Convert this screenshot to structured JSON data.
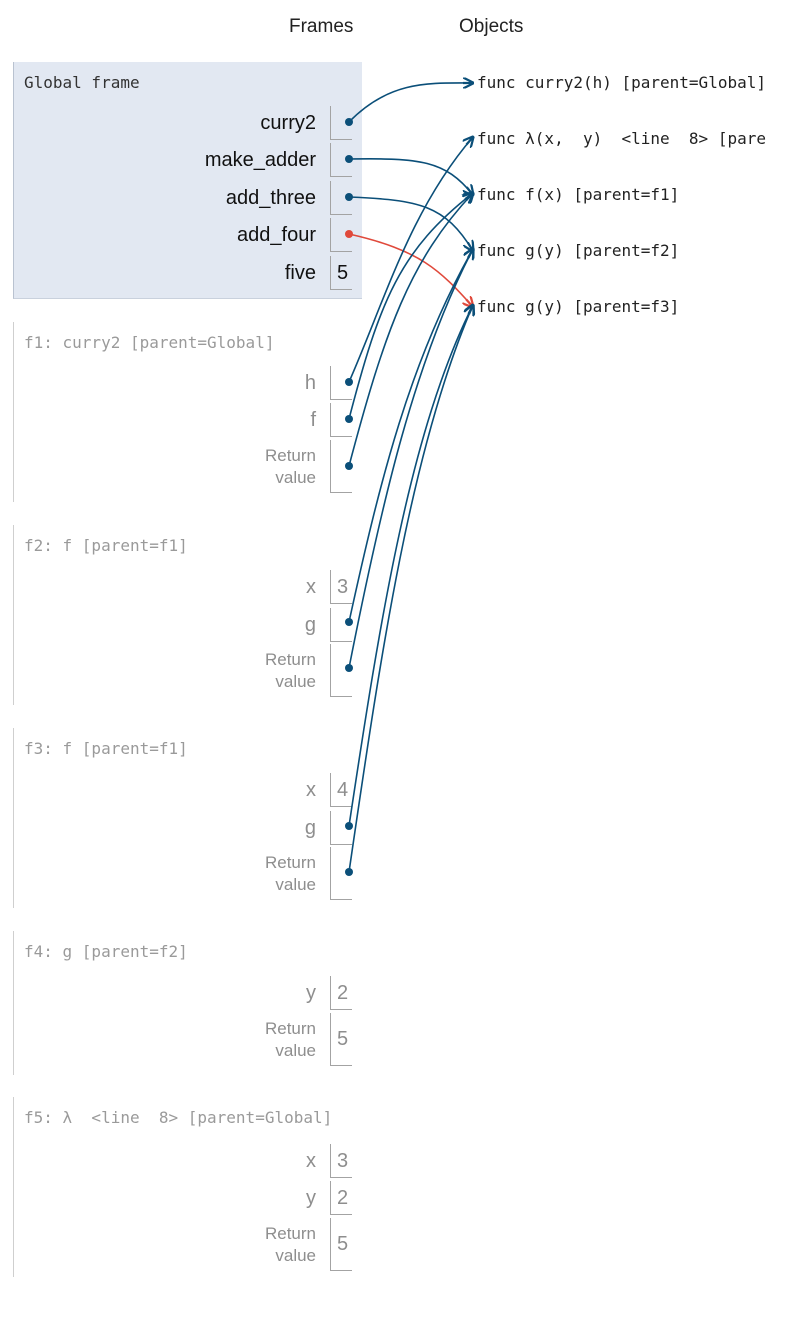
{
  "headers": {
    "frames": "Frames",
    "objects": "Objects"
  },
  "global_frame": {
    "title": "Global frame",
    "vars": [
      {
        "name": "curry2",
        "pointer": true
      },
      {
        "name": "make_adder",
        "pointer": true
      },
      {
        "name": "add_three",
        "pointer": true
      },
      {
        "name": "add_four",
        "pointer": true,
        "highlighted": true
      },
      {
        "name": "five",
        "value": "5"
      }
    ]
  },
  "frames": [
    {
      "title": "f1: curry2 [parent=Global]",
      "vars": [
        {
          "name": "h",
          "pointer": true
        },
        {
          "name": "f",
          "pointer": true
        }
      ],
      "return": {
        "label1": "Return",
        "label2": "value",
        "pointer": true
      }
    },
    {
      "title": "f2: f [parent=f1]",
      "vars": [
        {
          "name": "x",
          "value": "3"
        },
        {
          "name": "g",
          "pointer": true
        }
      ],
      "return": {
        "label1": "Return",
        "label2": "value",
        "pointer": true
      }
    },
    {
      "title": "f3: f [parent=f1]",
      "vars": [
        {
          "name": "x",
          "value": "4"
        },
        {
          "name": "g",
          "pointer": true
        }
      ],
      "return": {
        "label1": "Return",
        "label2": "value",
        "pointer": true
      }
    },
    {
      "title": "f4: g [parent=f2]",
      "vars": [
        {
          "name": "y",
          "value": "2"
        }
      ],
      "return": {
        "label1": "Return",
        "label2": "value",
        "value": "5"
      }
    },
    {
      "title": "f5: λ  <line  8> [parent=Global]",
      "vars": [
        {
          "name": "x",
          "value": "3"
        },
        {
          "name": "y",
          "value": "2"
        }
      ],
      "return": {
        "label1": "Return",
        "label2": "value",
        "value": "5"
      }
    }
  ],
  "objects": [
    {
      "label": "func curry2(h) [parent=Global]"
    },
    {
      "label": "func λ(x,  y)  <line  8> [pare"
    },
    {
      "label": "func f(x) [parent=f1]"
    },
    {
      "label": "func g(y) [parent=f2]"
    },
    {
      "label": "func g(y) [parent=f3]"
    }
  ],
  "colors": {
    "arrow": "#0b4f79",
    "highlight_arrow": "#e0493b",
    "global_bg": "#e2e8f2"
  }
}
